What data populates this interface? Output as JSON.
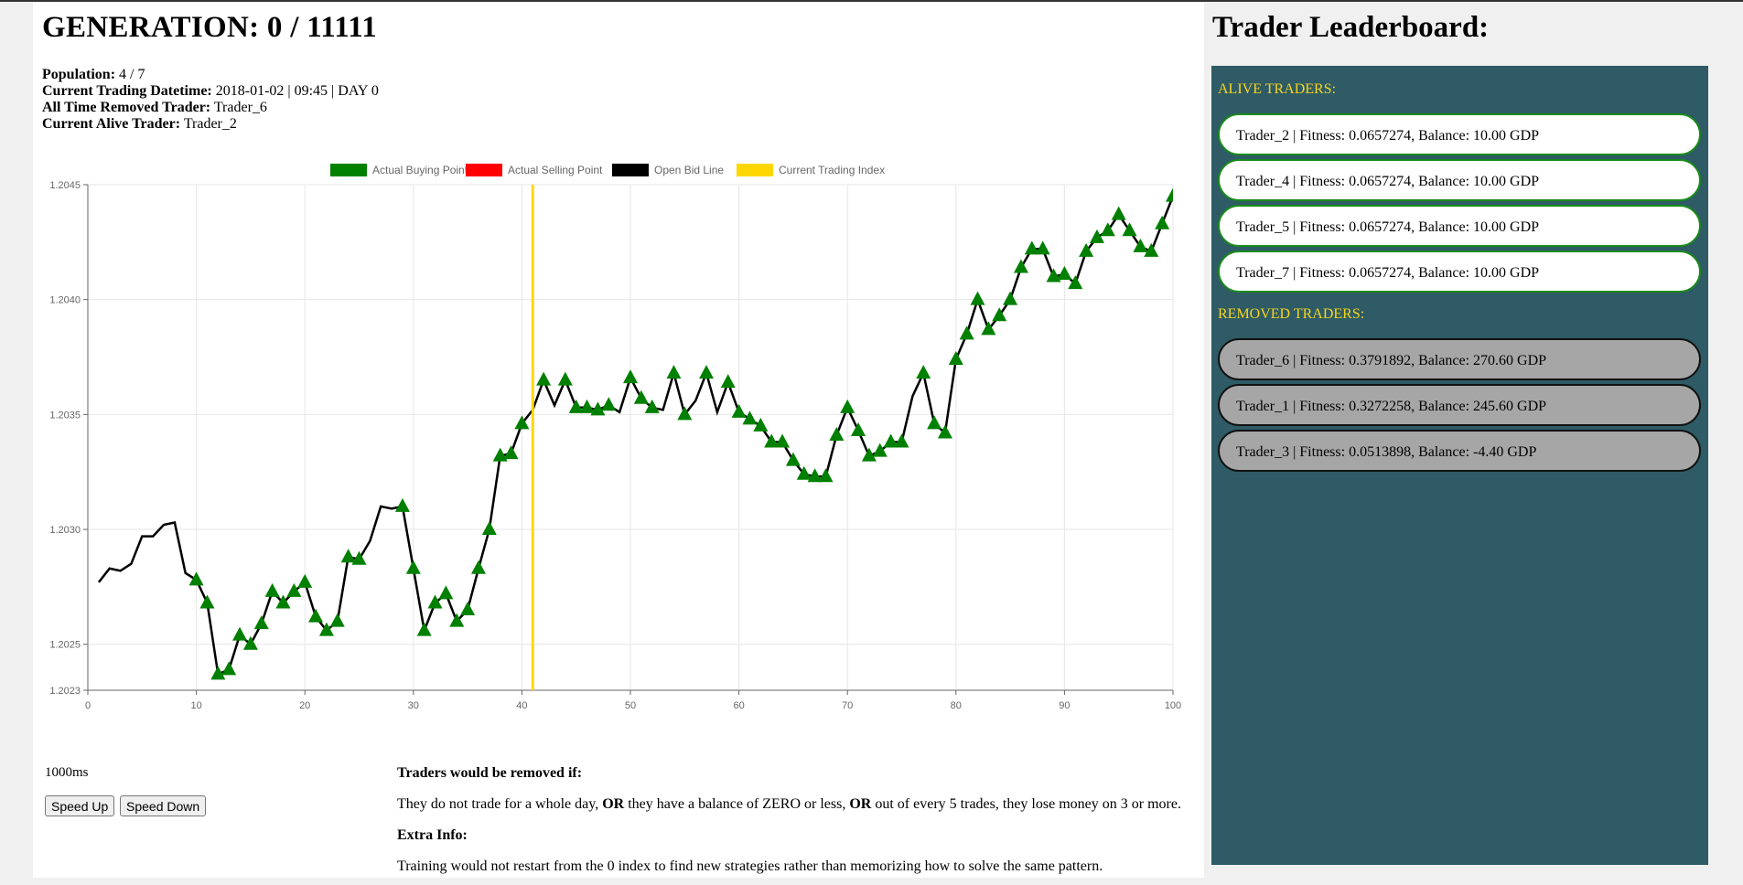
{
  "header": {
    "title": "GENERATION: 0 / 11111",
    "population_label": "Population:",
    "population_value": "4 / 7",
    "datetime_label": "Current Trading Datetime:",
    "datetime_value": "2018-01-02 | 09:45 | DAY 0",
    "removed_label": "All Time Removed Trader:",
    "removed_value": "Trader_6",
    "alive_label": "Current Alive Trader:",
    "alive_value": "Trader_2"
  },
  "chart_data": {
    "type": "line",
    "title": "",
    "xlabel": "",
    "ylabel": "",
    "xlim": [
      0,
      100
    ],
    "ylim": [
      1.2023,
      1.2045
    ],
    "x_ticks": [
      0,
      10,
      20,
      30,
      40,
      50,
      60,
      70,
      80,
      90,
      100
    ],
    "y_ticks": [
      "1.2023",
      "1.2025",
      "1.2030",
      "1.2035",
      "1.2040",
      "1.2045"
    ],
    "legend": {
      "placement": "top-center",
      "items": [
        {
          "label": "Actual Buying Point",
          "color": "#008000"
        },
        {
          "label": "Actual Selling Point",
          "color": "#ff0000"
        },
        {
          "label": "Open Bid Line",
          "color": "#000000"
        },
        {
          "label": "Current Trading Index",
          "color": "#ffd700"
        }
      ]
    },
    "current_trading_index": 41,
    "bid_line": [
      [
        1,
        1.20277
      ],
      [
        2,
        1.20283
      ],
      [
        3,
        1.20282
      ],
      [
        4,
        1.20285
      ],
      [
        5,
        1.20297
      ],
      [
        6,
        1.20297
      ],
      [
        7,
        1.20302
      ],
      [
        8,
        1.20303
      ],
      [
        9,
        1.20281
      ],
      [
        10,
        1.20278
      ],
      [
        11,
        1.20268
      ],
      [
        12,
        1.20237
      ],
      [
        13,
        1.20239
      ],
      [
        14,
        1.20254
      ],
      [
        15,
        1.2025
      ],
      [
        16,
        1.20259
      ],
      [
        17,
        1.20273
      ],
      [
        18,
        1.20268
      ],
      [
        19,
        1.20273
      ],
      [
        20,
        1.20277
      ],
      [
        21,
        1.20262
      ],
      [
        22,
        1.20256
      ],
      [
        23,
        1.2026
      ],
      [
        24,
        1.20288
      ],
      [
        25,
        1.20287
      ],
      [
        26,
        1.20295
      ],
      [
        27,
        1.2031
      ],
      [
        28,
        1.20309
      ],
      [
        29,
        1.2031
      ],
      [
        30,
        1.20283
      ],
      [
        31,
        1.20256
      ],
      [
        32,
        1.20268
      ],
      [
        33,
        1.20272
      ],
      [
        34,
        1.2026
      ],
      [
        35,
        1.20265
      ],
      [
        36,
        1.20283
      ],
      [
        37,
        1.203
      ],
      [
        38,
        1.20332
      ],
      [
        39,
        1.20333
      ],
      [
        40,
        1.20346
      ],
      [
        41,
        1.20352
      ],
      [
        42,
        1.20365
      ],
      [
        43,
        1.20354
      ],
      [
        44,
        1.20365
      ],
      [
        45,
        1.20353
      ],
      [
        46,
        1.20353
      ],
      [
        47,
        1.20352
      ],
      [
        48,
        1.20354
      ],
      [
        49,
        1.20351
      ],
      [
        50,
        1.20366
      ],
      [
        51,
        1.20357
      ],
      [
        52,
        1.20353
      ],
      [
        53,
        1.20352
      ],
      [
        54,
        1.20368
      ],
      [
        55,
        1.2035
      ],
      [
        56,
        1.20356
      ],
      [
        57,
        1.20368
      ],
      [
        58,
        1.20351
      ],
      [
        59,
        1.20364
      ],
      [
        60,
        1.20351
      ],
      [
        61,
        1.20348
      ],
      [
        62,
        1.20345
      ],
      [
        63,
        1.20338
      ],
      [
        64,
        1.20338
      ],
      [
        65,
        1.2033
      ],
      [
        66,
        1.20324
      ],
      [
        67,
        1.20323
      ],
      [
        68,
        1.20323
      ],
      [
        69,
        1.20341
      ],
      [
        70,
        1.20353
      ],
      [
        71,
        1.20343
      ],
      [
        72,
        1.20332
      ],
      [
        73,
        1.20334
      ],
      [
        74,
        1.20338
      ],
      [
        75,
        1.20338
      ],
      [
        76,
        1.20358
      ],
      [
        77,
        1.20368
      ],
      [
        78,
        1.20346
      ],
      [
        79,
        1.20342
      ],
      [
        80,
        1.20374
      ],
      [
        81,
        1.20385
      ],
      [
        82,
        1.204
      ],
      [
        83,
        1.20387
      ],
      [
        84,
        1.20393
      ],
      [
        85,
        1.204
      ],
      [
        86,
        1.20414
      ],
      [
        87,
        1.20422
      ],
      [
        88,
        1.20422
      ],
      [
        89,
        1.2041
      ],
      [
        90,
        1.20411
      ],
      [
        91,
        1.20407
      ],
      [
        92,
        1.20421
      ],
      [
        93,
        1.20427
      ],
      [
        94,
        1.2043
      ],
      [
        95,
        1.20437
      ],
      [
        96,
        1.2043
      ],
      [
        97,
        1.20423
      ],
      [
        98,
        1.20421
      ],
      [
        99,
        1.20433
      ],
      [
        100,
        1.20445
      ]
    ],
    "buying_points": [
      [
        10,
        1.20278
      ],
      [
        11,
        1.20268
      ],
      [
        12,
        1.20237
      ],
      [
        13,
        1.20239
      ],
      [
        14,
        1.20254
      ],
      [
        15,
        1.2025
      ],
      [
        16,
        1.20259
      ],
      [
        17,
        1.20273
      ],
      [
        18,
        1.20268
      ],
      [
        19,
        1.20273
      ],
      [
        20,
        1.20277
      ],
      [
        21,
        1.20262
      ],
      [
        22,
        1.20256
      ],
      [
        23,
        1.2026
      ],
      [
        24,
        1.20288
      ],
      [
        25,
        1.20287
      ],
      [
        29,
        1.2031
      ],
      [
        30,
        1.20283
      ],
      [
        31,
        1.20256
      ],
      [
        32,
        1.20268
      ],
      [
        33,
        1.20272
      ],
      [
        34,
        1.2026
      ],
      [
        35,
        1.20265
      ],
      [
        36,
        1.20283
      ],
      [
        37,
        1.203
      ],
      [
        38,
        1.20332
      ],
      [
        39,
        1.20333
      ],
      [
        40,
        1.20346
      ],
      [
        42,
        1.20365
      ],
      [
        44,
        1.20365
      ],
      [
        45,
        1.20353
      ],
      [
        46,
        1.20353
      ],
      [
        47,
        1.20352
      ],
      [
        48,
        1.20354
      ],
      [
        50,
        1.20366
      ],
      [
        51,
        1.20357
      ],
      [
        52,
        1.20353
      ],
      [
        54,
        1.20368
      ],
      [
        55,
        1.2035
      ],
      [
        57,
        1.20368
      ],
      [
        59,
        1.20364
      ],
      [
        60,
        1.20351
      ],
      [
        61,
        1.20348
      ],
      [
        62,
        1.20345
      ],
      [
        63,
        1.20338
      ],
      [
        64,
        1.20338
      ],
      [
        65,
        1.2033
      ],
      [
        66,
        1.20324
      ],
      [
        67,
        1.20323
      ],
      [
        68,
        1.20323
      ],
      [
        69,
        1.20341
      ],
      [
        70,
        1.20353
      ],
      [
        71,
        1.20343
      ],
      [
        72,
        1.20332
      ],
      [
        73,
        1.20334
      ],
      [
        74,
        1.20338
      ],
      [
        75,
        1.20338
      ],
      [
        77,
        1.20368
      ],
      [
        78,
        1.20346
      ],
      [
        79,
        1.20342
      ],
      [
        80,
        1.20374
      ],
      [
        81,
        1.20385
      ],
      [
        82,
        1.204
      ],
      [
        83,
        1.20387
      ],
      [
        84,
        1.20393
      ],
      [
        85,
        1.204
      ],
      [
        86,
        1.20414
      ],
      [
        87,
        1.20422
      ],
      [
        88,
        1.20422
      ],
      [
        89,
        1.2041
      ],
      [
        90,
        1.20411
      ],
      [
        91,
        1.20407
      ],
      [
        92,
        1.20421
      ],
      [
        93,
        1.20427
      ],
      [
        94,
        1.2043
      ],
      [
        95,
        1.20437
      ],
      [
        96,
        1.2043
      ],
      [
        97,
        1.20423
      ],
      [
        98,
        1.20421
      ],
      [
        99,
        1.20433
      ],
      [
        100,
        1.20445
      ]
    ],
    "selling_points": [],
    "grid": true,
    "colors": {
      "buy": "#008000",
      "sell": "#ff0000",
      "bid": "#000000",
      "index": "#ffd700",
      "grid": "#e6e6e6",
      "axis": "#666666"
    }
  },
  "controls": {
    "speed_value": "1000ms",
    "speed_up_label": "Speed Up",
    "speed_down_label": "Speed Down"
  },
  "rules": {
    "removed_heading": "Traders would be removed if:",
    "removed_text_1": "They do not trade for a whole day,",
    "or_1": "OR",
    "removed_text_2": "they have a balance of ZERO or less,",
    "or_2": "OR",
    "removed_text_3": "out of every 5 trades, they lose money on 3 or more.",
    "extra_heading": "Extra Info:",
    "extra_text": "Training would not restart from the 0 index to find new strategies rather than memorizing how to solve the same pattern."
  },
  "leaderboard": {
    "title": "Trader Leaderboard:",
    "alive_label": "ALIVE TRADERS:",
    "removed_label": "REMOVED TRADERS:",
    "alive": [
      "Trader_2 | Fitness: 0.0657274, Balance: 10.00 GDP",
      "Trader_4 | Fitness: 0.0657274, Balance: 10.00 GDP",
      "Trader_5 | Fitness: 0.0657274, Balance: 10.00 GDP",
      "Trader_7 | Fitness: 0.0657274, Balance: 10.00 GDP"
    ],
    "removed": [
      "Trader_6 | Fitness: 0.3791892, Balance: 270.60 GDP",
      "Trader_1 | Fitness: 0.3272258, Balance: 245.60 GDP",
      "Trader_3 | Fitness: 0.0513898, Balance: -4.40 GDP"
    ],
    "panel_color": "#2e5b66",
    "label_color": "#f7d51d"
  }
}
